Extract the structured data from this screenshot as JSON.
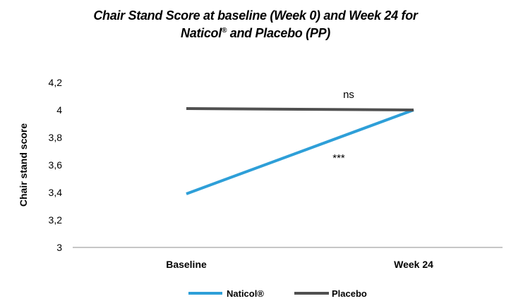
{
  "chart_data": {
    "type": "line",
    "title_line1": "Chair Stand Score at baseline (Week 0) and Week 24 for",
    "title_line2_main": "Naticol",
    "title_line2_sup": "®",
    "title_line2_rest": " and Placebo (PP)",
    "xlabel": "",
    "ylabel": "Chair stand score",
    "categories": [
      "Baseline",
      "Week 24"
    ],
    "ylim": [
      3,
      4.2
    ],
    "yticks": [
      "3",
      "3,2",
      "3,4",
      "3,6",
      "3,8",
      "4",
      "4,2"
    ],
    "ytick_values": [
      3,
      3.2,
      3.4,
      3.6,
      3.8,
      4,
      4.2
    ],
    "grid": false,
    "legend_position": "bottom",
    "series": [
      {
        "name": "Naticol®",
        "values": [
          3.39,
          4.0
        ],
        "color": "#2E9FD8"
      },
      {
        "name": "Placebo",
        "values": [
          4.01,
          4.0
        ],
        "color": "#505050"
      }
    ],
    "annotations": [
      {
        "text": "ns",
        "series": "Placebo"
      },
      {
        "text": "***",
        "series": "Naticol®"
      }
    ]
  }
}
